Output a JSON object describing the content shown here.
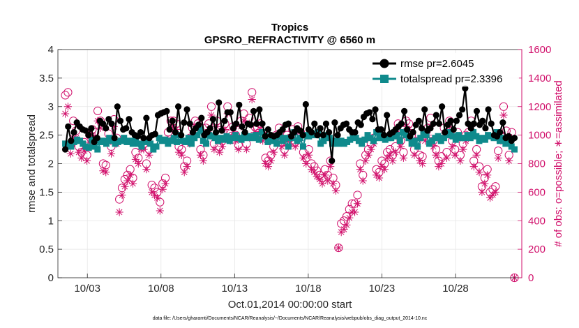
{
  "chart_data": {
    "type": "line",
    "title": "Tropics",
    "subtitle": "GPSRO_REFRACTIVITY @ 6560 m",
    "xlabel": "Oct.01,2014 00:00:00 start",
    "ylabel": "rmse and totalspread",
    "y2label": "# of obs: o=possible; ∗=assimilated",
    "footer": "data file: /Users/gharamti/Documents/NCAR/Reanalysis/~/Documents/NCAR/Reanalysis/webpub/obs_diag_output_2014-10.nc",
    "xlim": [
      1,
      32.5
    ],
    "ylim": [
      0,
      4
    ],
    "y2lim": [
      0,
      1600
    ],
    "x_ticks": [
      {
        "value": 3,
        "label": "10/03"
      },
      {
        "value": 8,
        "label": "10/08"
      },
      {
        "value": 13,
        "label": "10/13"
      },
      {
        "value": 18,
        "label": "10/18"
      },
      {
        "value": 23,
        "label": "10/23"
      },
      {
        "value": 28,
        "label": "10/28"
      }
    ],
    "y_ticks": [
      "0",
      "0.5",
      "1",
      "1.5",
      "2",
      "2.5",
      "3",
      "3.5",
      "4"
    ],
    "y2_ticks": [
      "0",
      "200",
      "400",
      "600",
      "800",
      "1000",
      "1200",
      "1400",
      "1600"
    ],
    "grid": true,
    "legend_position": "top-right",
    "colors": {
      "rmse": "#000000",
      "totalspread": "#0f8a8c",
      "obs": "#d1116c",
      "grid": "#e6e6e6"
    },
    "series": [
      {
        "name": "rmse pr=2.6045",
        "key": "rmse",
        "axis": "left",
        "marker": "circle",
        "values": [
          2.25,
          2.65,
          2.4,
          2.55,
          2.72,
          2.65,
          2.6,
          2.58,
          2.5,
          2.62,
          2.38,
          2.45,
          2.75,
          2.7,
          2.62,
          2.78,
          2.7,
          2.45,
          3.0,
          2.75,
          2.6,
          2.62,
          2.78,
          2.55,
          2.5,
          2.48,
          2.55,
          2.45,
          2.8,
          2.45,
          2.5,
          2.52,
          2.85,
          2.88,
          2.9,
          2.92,
          2.6,
          2.75,
          2.55,
          3.0,
          2.5,
          2.72,
          2.95,
          2.7,
          2.55,
          2.62,
          2.68,
          2.8,
          2.5,
          2.55,
          2.62,
          2.78,
          2.55,
          3.07,
          2.58,
          2.75,
          2.9,
          2.9,
          2.62,
          2.7,
          3.03,
          2.65,
          2.55,
          2.7,
          2.68,
          2.92,
          2.7,
          2.95,
          2.7,
          2.48,
          2.6,
          2.5,
          2.48,
          2.5,
          2.55,
          2.6,
          2.68,
          2.7,
          2.48,
          2.55,
          2.62,
          2.58,
          2.5,
          3.04,
          2.6,
          2.55,
          2.7,
          2.5,
          2.62,
          2.5,
          2.7,
          2.55,
          2.05,
          2.72,
          2.5,
          2.62,
          2.68,
          2.7,
          2.6,
          2.55,
          2.55,
          2.72,
          2.68,
          2.82,
          2.88,
          2.9,
          2.78,
          2.95,
          2.6,
          2.6,
          2.5,
          2.85,
          2.52,
          2.55,
          2.6,
          2.65,
          2.7,
          2.92,
          2.6,
          2.48,
          2.55,
          2.68,
          2.75,
          2.62,
          2.95,
          2.58,
          2.62,
          2.7,
          2.85,
          2.7,
          3.0,
          2.55,
          2.68,
          2.75,
          2.6,
          2.75,
          2.85,
          2.95,
          3.32,
          2.7,
          2.62,
          2.7,
          2.92,
          2.68,
          2.75,
          2.62,
          2.95,
          2.7,
          2.5,
          2.48,
          2.55,
          2.72,
          2.45,
          2.48,
          2.4,
          2.45
        ]
      },
      {
        "name": "totalspread pr=2.3396",
        "key": "totalspread",
        "axis": "left",
        "marker": "square",
        "values": [
          2.35,
          2.35,
          2.3,
          2.38,
          2.42,
          2.4,
          2.35,
          2.3,
          2.28,
          2.42,
          2.3,
          2.25,
          2.38,
          2.4,
          2.35,
          2.45,
          2.4,
          2.35,
          2.38,
          2.4,
          2.45,
          2.38,
          2.4,
          2.35,
          2.42,
          2.35,
          2.3,
          2.4,
          2.38,
          2.35,
          2.25,
          2.3,
          2.45,
          2.4,
          2.42,
          2.35,
          2.4,
          2.45,
          2.38,
          2.5,
          2.4,
          2.38,
          2.45,
          2.35,
          2.45,
          2.5,
          2.6,
          2.4,
          2.35,
          2.5,
          2.48,
          2.45,
          2.4,
          2.45,
          2.42,
          2.48,
          2.4,
          2.45,
          2.5,
          2.45,
          2.42,
          2.5,
          2.45,
          2.48,
          2.45,
          2.5,
          2.42,
          2.55,
          2.48,
          2.38,
          2.4,
          2.45,
          2.35,
          2.48,
          2.4,
          2.45,
          2.3,
          2.45,
          2.55,
          2.4,
          2.45,
          2.3,
          2.5,
          2.48,
          2.52,
          2.5,
          2.55,
          2.35,
          2.4,
          2.5,
          2.45,
          2.35,
          2.4,
          2.35,
          2.4,
          2.35,
          2.38,
          2.42,
          2.5,
          2.45,
          2.4,
          2.35,
          2.42,
          2.5,
          2.45,
          2.4,
          2.55,
          2.45,
          2.5,
          2.42,
          2.45,
          2.45,
          2.48,
          2.5,
          2.4,
          2.55,
          2.5,
          2.45,
          2.35,
          2.4,
          2.3,
          2.45,
          2.52,
          2.5,
          2.35,
          2.4,
          2.45,
          2.48,
          2.4,
          2.45,
          2.5,
          2.55,
          2.48,
          2.42,
          2.5,
          2.45,
          2.45,
          2.5,
          2.45,
          2.55,
          2.48,
          2.4,
          2.45,
          2.42,
          2.5,
          2.48,
          2.45,
          2.55,
          2.4,
          2.45,
          2.35,
          2.38,
          2.3,
          2.25
        ]
      },
      {
        "name": "possible",
        "key": "possible",
        "axis": "right",
        "marker": "open-circle",
        "values": [
          1280,
          1300,
          930,
          1100,
          1030,
          920,
          880,
          950,
          860,
          1000,
          1040,
          1020,
          1170,
          1100,
          800,
          790,
          1010,
          920,
          1110,
          980,
          550,
          630,
          690,
          720,
          760,
          700,
          880,
          840,
          960,
          940,
          800,
          900,
          650,
          630,
          600,
          530,
          660,
          700,
          1020,
          1100,
          1100,
          1080,
          920,
          900,
          780,
          820,
          980,
          1050,
          1100,
          1080,
          900,
          860,
          1050,
          1080,
          1200,
          940,
          1100,
          920,
          960,
          1080,
          1200,
          1010,
          1060,
          1000,
          930,
          1100,
          1150,
          940,
          1120,
          1300,
          1060,
          1050,
          1080,
          1000,
          840,
          820,
          860,
          920,
          1000,
          1050,
          950,
          900,
          1000,
          980,
          1040,
          950,
          1060,
          1020,
          880,
          840,
          900,
          800,
          780,
          750,
          720,
          700,
          760,
          720,
          820,
          700,
          650,
          210,
          380,
          400,
          430,
          480,
          520,
          520,
          580,
          800,
          720,
          860,
          900,
          940,
          980,
          760,
          740,
          820,
          800,
          880,
          900,
          860,
          920,
          1080,
          960,
          880,
          1100,
          1080,
          1000,
          900,
          960,
          860,
          850,
          1000,
          1050,
          1120,
          960,
          900,
          820,
          850,
          1050,
          880,
          1100,
          960,
          900,
          1020,
          860,
          940,
          1000,
          1020,
          1100,
          820,
          900,
          780,
          640,
          700,
          760,
          600,
          620,
          640,
          890,
          1000,
          1200,
          1030,
          860,
          1020,
          0
        ]
      },
      {
        "name": "assimilated",
        "key": "assimilated",
        "axis": "right",
        "marker": "asterisk",
        "values": [
          1150,
          1200,
          870,
          980,
          980,
          880,
          840,
          890,
          820,
          950,
          1000,
          990,
          1100,
          1050,
          750,
          740,
          950,
          870,
          1060,
          940,
          460,
          580,
          640,
          680,
          720,
          660,
          830,
          800,
          900,
          900,
          760,
          860,
          600,
          580,
          560,
          470,
          620,
          660,
          970,
          1050,
          1060,
          1040,
          880,
          860,
          740,
          780,
          940,
          1000,
          1060,
          1040,
          860,
          820,
          1000,
          1040,
          1140,
          900,
          1060,
          880,
          920,
          1040,
          1150,
          960,
          1020,
          960,
          900,
          1060,
          1100,
          900,
          1080,
          1250,
          1020,
          1000,
          1040,
          960,
          800,
          780,
          820,
          880,
          960,
          1000,
          920,
          860,
          960,
          940,
          1000,
          920,
          1020,
          980,
          840,
          800,
          860,
          760,
          740,
          710,
          690,
          660,
          720,
          680,
          780,
          660,
          610,
          210,
          320,
          340,
          370,
          420,
          460,
          460,
          520,
          760,
          680,
          820,
          860,
          900,
          940,
          720,
          700,
          780,
          760,
          840,
          860,
          820,
          880,
          1020,
          920,
          840,
          1060,
          1040,
          960,
          860,
          920,
          820,
          800,
          960,
          1000,
          1060,
          920,
          860,
          780,
          800,
          1000,
          840,
          1060,
          920,
          860,
          980,
          820,
          900,
          960,
          980,
          1060,
          780,
          860,
          740,
          600,
          660,
          720,
          560,
          580,
          600,
          840,
          960,
          1140,
          980,
          820,
          980,
          0
        ]
      }
    ]
  }
}
